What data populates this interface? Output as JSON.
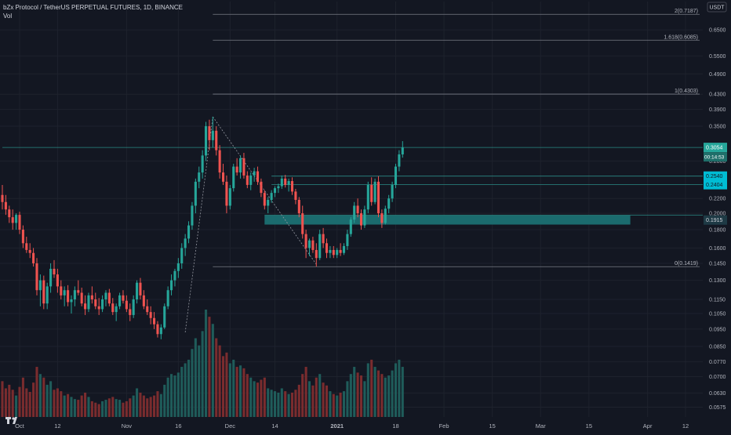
{
  "header": {
    "title": "bZx Protocol / TetherUS PERPETUAL FUTURES, 1D, BINANCE",
    "volume_label": "Vol"
  },
  "axis": {
    "currency": "USDT",
    "price_ticks": [
      "0.6500",
      "0.5500",
      "0.4900",
      "0.4300",
      "0.3900",
      "0.3500",
      "0.2800",
      "0.2200",
      "0.2000",
      "0.1800",
      "0.1600",
      "0.1450",
      "0.1300",
      "0.1150",
      "0.1050",
      "0.0950",
      "0.0850",
      "0.0770",
      "0.0700",
      "0.0630",
      "0.0575"
    ],
    "time_ticks": [
      "Oct",
      "12",
      "Nov",
      "16",
      "Dec",
      "14",
      "2021",
      "18",
      "Feb",
      "15",
      "Mar",
      "15",
      "Apr",
      "12"
    ]
  },
  "price_labels": {
    "last_price": "0.3054",
    "countdown": "00:14:53",
    "upper_line": "0.2540",
    "lower_line": "0.2404",
    "zone": "0.1915"
  },
  "fibonacci": {
    "levels": [
      {
        "label": "2(0.7187)",
        "value": 0.7187
      },
      {
        "label": "1.618(0.6085)",
        "value": 0.6085
      },
      {
        "label": "1(0.4303)",
        "value": 0.4303
      },
      {
        "label": "0(0.1419)",
        "value": 0.1419
      }
    ]
  },
  "colors": {
    "background": "#131722",
    "up": "#26a69a",
    "down": "#ef5350",
    "up_volume": "#1f5c5a",
    "down_volume": "#7a2c2e",
    "grid": "#1e222d",
    "text": "#b2b5be",
    "level_line": "#787b86",
    "teal_line": "#2a8a84",
    "zone": "#1b6b6e",
    "label_bg": "#00bcd4"
  },
  "chart_data": {
    "type": "candlestick",
    "interval": "1D",
    "y_scale": "log",
    "ylim": [
      0.054,
      0.78
    ],
    "x_range": [
      "2020-09-26",
      "2021-04-17"
    ],
    "x_labels": {
      "2020-10-01": "Oct",
      "2020-10-12": "12",
      "2020-11-01": "Nov",
      "2020-11-16": "16",
      "2020-12-01": "Dec",
      "2020-12-14": "14",
      "2021-01-01": "2021",
      "2021-01-18": "18",
      "2021-02-01": "Feb",
      "2021-02-15": "15",
      "2021-03-01": "Mar",
      "2021-03-15": "15",
      "2021-04-01": "Apr",
      "2021-04-12": "12"
    },
    "horizontal_lines": [
      {
        "value": 0.3054,
        "from": "2020-09-26"
      },
      {
        "value": 0.254,
        "from": "2020-12-13"
      },
      {
        "value": 0.2404,
        "from": "2020-12-13"
      }
    ],
    "zone": {
      "from": "2020-12-11",
      "to": "2021-03-27",
      "low": 0.186,
      "high": 0.1975
    },
    "fib_from": "2020-11-26",
    "fib_to": "2021-04-17",
    "trend_lines": [
      {
        "points": [
          [
            "2020-11-18",
            0.093
          ],
          [
            "2020-11-26",
            0.372
          ]
        ]
      },
      {
        "points": [
          [
            "2020-11-26",
            0.372
          ],
          [
            "2020-12-26",
            0.144
          ]
        ]
      }
    ],
    "candles": [
      {
        "d": "2020-09-26",
        "o": 0.225,
        "h": 0.24,
        "l": 0.205,
        "c": 0.215,
        "v": 50
      },
      {
        "d": "2020-09-27",
        "o": 0.215,
        "h": 0.225,
        "l": 0.198,
        "c": 0.205,
        "v": 40
      },
      {
        "d": "2020-09-28",
        "o": 0.205,
        "h": 0.21,
        "l": 0.188,
        "c": 0.195,
        "v": 45
      },
      {
        "d": "2020-09-29",
        "o": 0.195,
        "h": 0.205,
        "l": 0.18,
        "c": 0.188,
        "v": 38
      },
      {
        "d": "2020-09-30",
        "o": 0.188,
        "h": 0.2,
        "l": 0.18,
        "c": 0.198,
        "v": 30
      },
      {
        "d": "2020-10-01",
        "o": 0.198,
        "h": 0.202,
        "l": 0.175,
        "c": 0.18,
        "v": 42
      },
      {
        "d": "2020-10-02",
        "o": 0.18,
        "h": 0.185,
        "l": 0.16,
        "c": 0.165,
        "v": 55
      },
      {
        "d": "2020-10-03",
        "o": 0.165,
        "h": 0.172,
        "l": 0.155,
        "c": 0.158,
        "v": 40
      },
      {
        "d": "2020-10-04",
        "o": 0.158,
        "h": 0.165,
        "l": 0.15,
        "c": 0.155,
        "v": 35
      },
      {
        "d": "2020-10-05",
        "o": 0.155,
        "h": 0.16,
        "l": 0.142,
        "c": 0.145,
        "v": 48
      },
      {
        "d": "2020-10-06",
        "o": 0.145,
        "h": 0.15,
        "l": 0.118,
        "c": 0.122,
        "v": 70
      },
      {
        "d": "2020-10-07",
        "o": 0.122,
        "h": 0.135,
        "l": 0.11,
        "c": 0.13,
        "v": 60
      },
      {
        "d": "2020-10-08",
        "o": 0.13,
        "h": 0.134,
        "l": 0.108,
        "c": 0.112,
        "v": 55
      },
      {
        "d": "2020-10-09",
        "o": 0.112,
        "h": 0.128,
        "l": 0.108,
        "c": 0.125,
        "v": 45
      },
      {
        "d": "2020-10-10",
        "o": 0.125,
        "h": 0.145,
        "l": 0.12,
        "c": 0.14,
        "v": 50
      },
      {
        "d": "2020-10-11",
        "o": 0.14,
        "h": 0.148,
        "l": 0.132,
        "c": 0.135,
        "v": 38
      },
      {
        "d": "2020-10-12",
        "o": 0.135,
        "h": 0.14,
        "l": 0.12,
        "c": 0.125,
        "v": 40
      },
      {
        "d": "2020-10-13",
        "o": 0.125,
        "h": 0.13,
        "l": 0.115,
        "c": 0.118,
        "v": 36
      },
      {
        "d": "2020-10-14",
        "o": 0.118,
        "h": 0.125,
        "l": 0.11,
        "c": 0.122,
        "v": 30
      },
      {
        "d": "2020-10-15",
        "o": 0.122,
        "h": 0.126,
        "l": 0.11,
        "c": 0.113,
        "v": 32
      },
      {
        "d": "2020-10-16",
        "o": 0.113,
        "h": 0.118,
        "l": 0.105,
        "c": 0.115,
        "v": 28
      },
      {
        "d": "2020-10-17",
        "o": 0.115,
        "h": 0.125,
        "l": 0.11,
        "c": 0.122,
        "v": 25
      },
      {
        "d": "2020-10-18",
        "o": 0.122,
        "h": 0.13,
        "l": 0.118,
        "c": 0.12,
        "v": 24
      },
      {
        "d": "2020-10-19",
        "o": 0.12,
        "h": 0.124,
        "l": 0.11,
        "c": 0.112,
        "v": 30
      },
      {
        "d": "2020-10-20",
        "o": 0.112,
        "h": 0.118,
        "l": 0.104,
        "c": 0.108,
        "v": 34
      },
      {
        "d": "2020-10-21",
        "o": 0.108,
        "h": 0.12,
        "l": 0.106,
        "c": 0.118,
        "v": 28
      },
      {
        "d": "2020-10-22",
        "o": 0.118,
        "h": 0.125,
        "l": 0.112,
        "c": 0.115,
        "v": 22
      },
      {
        "d": "2020-10-23",
        "o": 0.115,
        "h": 0.12,
        "l": 0.108,
        "c": 0.11,
        "v": 20
      },
      {
        "d": "2020-10-24",
        "o": 0.11,
        "h": 0.116,
        "l": 0.104,
        "c": 0.108,
        "v": 18
      },
      {
        "d": "2020-10-25",
        "o": 0.108,
        "h": 0.118,
        "l": 0.106,
        "c": 0.115,
        "v": 22
      },
      {
        "d": "2020-10-26",
        "o": 0.115,
        "h": 0.122,
        "l": 0.11,
        "c": 0.12,
        "v": 24
      },
      {
        "d": "2020-10-27",
        "o": 0.12,
        "h": 0.123,
        "l": 0.11,
        "c": 0.112,
        "v": 26
      },
      {
        "d": "2020-10-28",
        "o": 0.112,
        "h": 0.116,
        "l": 0.104,
        "c": 0.106,
        "v": 28
      },
      {
        "d": "2020-10-29",
        "o": 0.106,
        "h": 0.112,
        "l": 0.1,
        "c": 0.11,
        "v": 25
      },
      {
        "d": "2020-10-30",
        "o": 0.11,
        "h": 0.12,
        "l": 0.108,
        "c": 0.118,
        "v": 24
      },
      {
        "d": "2020-10-31",
        "o": 0.118,
        "h": 0.122,
        "l": 0.112,
        "c": 0.114,
        "v": 20
      },
      {
        "d": "2020-11-01",
        "o": 0.114,
        "h": 0.118,
        "l": 0.106,
        "c": 0.108,
        "v": 22
      },
      {
        "d": "2020-11-02",
        "o": 0.108,
        "h": 0.112,
        "l": 0.1,
        "c": 0.104,
        "v": 26
      },
      {
        "d": "2020-11-03",
        "o": 0.104,
        "h": 0.118,
        "l": 0.102,
        "c": 0.115,
        "v": 30
      },
      {
        "d": "2020-11-04",
        "o": 0.115,
        "h": 0.13,
        "l": 0.112,
        "c": 0.128,
        "v": 40
      },
      {
        "d": "2020-11-05",
        "o": 0.128,
        "h": 0.132,
        "l": 0.115,
        "c": 0.118,
        "v": 34
      },
      {
        "d": "2020-11-06",
        "o": 0.118,
        "h": 0.122,
        "l": 0.108,
        "c": 0.11,
        "v": 30
      },
      {
        "d": "2020-11-07",
        "o": 0.11,
        "h": 0.115,
        "l": 0.104,
        "c": 0.106,
        "v": 26
      },
      {
        "d": "2020-11-08",
        "o": 0.106,
        "h": 0.11,
        "l": 0.098,
        "c": 0.102,
        "v": 28
      },
      {
        "d": "2020-11-09",
        "o": 0.102,
        "h": 0.106,
        "l": 0.095,
        "c": 0.098,
        "v": 30
      },
      {
        "d": "2020-11-10",
        "o": 0.098,
        "h": 0.1,
        "l": 0.09,
        "c": 0.092,
        "v": 36
      },
      {
        "d": "2020-11-11",
        "o": 0.092,
        "h": 0.098,
        "l": 0.089,
        "c": 0.096,
        "v": 32
      },
      {
        "d": "2020-11-12",
        "o": 0.096,
        "h": 0.112,
        "l": 0.095,
        "c": 0.11,
        "v": 45
      },
      {
        "d": "2020-11-13",
        "o": 0.11,
        "h": 0.125,
        "l": 0.108,
        "c": 0.122,
        "v": 55
      },
      {
        "d": "2020-11-14",
        "o": 0.122,
        "h": 0.135,
        "l": 0.118,
        "c": 0.13,
        "v": 60
      },
      {
        "d": "2020-11-15",
        "o": 0.13,
        "h": 0.14,
        "l": 0.125,
        "c": 0.138,
        "v": 58
      },
      {
        "d": "2020-11-16",
        "o": 0.138,
        "h": 0.15,
        "l": 0.132,
        "c": 0.145,
        "v": 62
      },
      {
        "d": "2020-11-17",
        "o": 0.145,
        "h": 0.165,
        "l": 0.14,
        "c": 0.16,
        "v": 70
      },
      {
        "d": "2020-11-18",
        "o": 0.16,
        "h": 0.175,
        "l": 0.152,
        "c": 0.17,
        "v": 75
      },
      {
        "d": "2020-11-19",
        "o": 0.17,
        "h": 0.19,
        "l": 0.165,
        "c": 0.185,
        "v": 80
      },
      {
        "d": "2020-11-20",
        "o": 0.185,
        "h": 0.215,
        "l": 0.18,
        "c": 0.21,
        "v": 95
      },
      {
        "d": "2020-11-21",
        "o": 0.21,
        "h": 0.25,
        "l": 0.2,
        "c": 0.245,
        "v": 110
      },
      {
        "d": "2020-11-22",
        "o": 0.245,
        "h": 0.27,
        "l": 0.235,
        "c": 0.26,
        "v": 100
      },
      {
        "d": "2020-11-23",
        "o": 0.26,
        "h": 0.3,
        "l": 0.25,
        "c": 0.29,
        "v": 120
      },
      {
        "d": "2020-11-24",
        "o": 0.29,
        "h": 0.36,
        "l": 0.28,
        "c": 0.35,
        "v": 150
      },
      {
        "d": "2020-11-25",
        "o": 0.35,
        "h": 0.365,
        "l": 0.3,
        "c": 0.32,
        "v": 140
      },
      {
        "d": "2020-11-26",
        "o": 0.32,
        "h": 0.372,
        "l": 0.305,
        "c": 0.34,
        "v": 130
      },
      {
        "d": "2020-11-27",
        "o": 0.34,
        "h": 0.35,
        "l": 0.29,
        "c": 0.3,
        "v": 110
      },
      {
        "d": "2020-11-28",
        "o": 0.3,
        "h": 0.31,
        "l": 0.25,
        "c": 0.26,
        "v": 100
      },
      {
        "d": "2020-11-29",
        "o": 0.26,
        "h": 0.275,
        "l": 0.24,
        "c": 0.245,
        "v": 85
      },
      {
        "d": "2020-11-30",
        "o": 0.245,
        "h": 0.255,
        "l": 0.2,
        "c": 0.21,
        "v": 90
      },
      {
        "d": "2020-12-01",
        "o": 0.21,
        "h": 0.24,
        "l": 0.205,
        "c": 0.235,
        "v": 75
      },
      {
        "d": "2020-12-02",
        "o": 0.235,
        "h": 0.275,
        "l": 0.23,
        "c": 0.27,
        "v": 80
      },
      {
        "d": "2020-12-03",
        "o": 0.27,
        "h": 0.285,
        "l": 0.255,
        "c": 0.26,
        "v": 70
      },
      {
        "d": "2020-12-04",
        "o": 0.26,
        "h": 0.29,
        "l": 0.25,
        "c": 0.285,
        "v": 72
      },
      {
        "d": "2020-12-05",
        "o": 0.285,
        "h": 0.295,
        "l": 0.25,
        "c": 0.255,
        "v": 68
      },
      {
        "d": "2020-12-06",
        "o": 0.255,
        "h": 0.262,
        "l": 0.235,
        "c": 0.24,
        "v": 60
      },
      {
        "d": "2020-12-07",
        "o": 0.24,
        "h": 0.26,
        "l": 0.232,
        "c": 0.255,
        "v": 55
      },
      {
        "d": "2020-12-08",
        "o": 0.255,
        "h": 0.268,
        "l": 0.245,
        "c": 0.262,
        "v": 50
      },
      {
        "d": "2020-12-09",
        "o": 0.262,
        "h": 0.27,
        "l": 0.24,
        "c": 0.245,
        "v": 48
      },
      {
        "d": "2020-12-10",
        "o": 0.245,
        "h": 0.25,
        "l": 0.222,
        "c": 0.228,
        "v": 52
      },
      {
        "d": "2020-12-11",
        "o": 0.228,
        "h": 0.232,
        "l": 0.205,
        "c": 0.21,
        "v": 55
      },
      {
        "d": "2020-12-12",
        "o": 0.21,
        "h": 0.222,
        "l": 0.2,
        "c": 0.218,
        "v": 40
      },
      {
        "d": "2020-12-13",
        "o": 0.218,
        "h": 0.232,
        "l": 0.214,
        "c": 0.228,
        "v": 38
      },
      {
        "d": "2020-12-14",
        "o": 0.228,
        "h": 0.238,
        "l": 0.222,
        "c": 0.235,
        "v": 36
      },
      {
        "d": "2020-12-15",
        "o": 0.235,
        "h": 0.242,
        "l": 0.228,
        "c": 0.238,
        "v": 34
      },
      {
        "d": "2020-12-16",
        "o": 0.238,
        "h": 0.255,
        "l": 0.234,
        "c": 0.25,
        "v": 40
      },
      {
        "d": "2020-12-17",
        "o": 0.25,
        "h": 0.256,
        "l": 0.236,
        "c": 0.24,
        "v": 36
      },
      {
        "d": "2020-12-18",
        "o": 0.24,
        "h": 0.25,
        "l": 0.23,
        "c": 0.246,
        "v": 32
      },
      {
        "d": "2020-12-19",
        "o": 0.246,
        "h": 0.252,
        "l": 0.225,
        "c": 0.23,
        "v": 34
      },
      {
        "d": "2020-12-20",
        "o": 0.23,
        "h": 0.234,
        "l": 0.212,
        "c": 0.218,
        "v": 38
      },
      {
        "d": "2020-12-21",
        "o": 0.218,
        "h": 0.222,
        "l": 0.195,
        "c": 0.2,
        "v": 45
      },
      {
        "d": "2020-12-22",
        "o": 0.2,
        "h": 0.21,
        "l": 0.17,
        "c": 0.175,
        "v": 60
      },
      {
        "d": "2020-12-23",
        "o": 0.175,
        "h": 0.18,
        "l": 0.15,
        "c": 0.16,
        "v": 70
      },
      {
        "d": "2020-12-24",
        "o": 0.16,
        "h": 0.17,
        "l": 0.152,
        "c": 0.168,
        "v": 50
      },
      {
        "d": "2020-12-25",
        "o": 0.168,
        "h": 0.172,
        "l": 0.155,
        "c": 0.158,
        "v": 44
      },
      {
        "d": "2020-12-26",
        "o": 0.158,
        "h": 0.165,
        "l": 0.142,
        "c": 0.15,
        "v": 55
      },
      {
        "d": "2020-12-27",
        "o": 0.15,
        "h": 0.18,
        "l": 0.148,
        "c": 0.175,
        "v": 60
      },
      {
        "d": "2020-12-28",
        "o": 0.175,
        "h": 0.182,
        "l": 0.16,
        "c": 0.165,
        "v": 48
      },
      {
        "d": "2020-12-29",
        "o": 0.165,
        "h": 0.17,
        "l": 0.15,
        "c": 0.155,
        "v": 44
      },
      {
        "d": "2020-12-30",
        "o": 0.155,
        "h": 0.162,
        "l": 0.15,
        "c": 0.158,
        "v": 36
      },
      {
        "d": "2020-12-31",
        "o": 0.158,
        "h": 0.162,
        "l": 0.15,
        "c": 0.153,
        "v": 32
      },
      {
        "d": "2021-01-01",
        "o": 0.153,
        "h": 0.16,
        "l": 0.15,
        "c": 0.158,
        "v": 30
      },
      {
        "d": "2021-01-02",
        "o": 0.158,
        "h": 0.165,
        "l": 0.152,
        "c": 0.155,
        "v": 34
      },
      {
        "d": "2021-01-03",
        "o": 0.155,
        "h": 0.165,
        "l": 0.153,
        "c": 0.162,
        "v": 36
      },
      {
        "d": "2021-01-04",
        "o": 0.162,
        "h": 0.18,
        "l": 0.158,
        "c": 0.175,
        "v": 50
      },
      {
        "d": "2021-01-05",
        "o": 0.175,
        "h": 0.195,
        "l": 0.172,
        "c": 0.192,
        "v": 60
      },
      {
        "d": "2021-01-06",
        "o": 0.192,
        "h": 0.215,
        "l": 0.188,
        "c": 0.21,
        "v": 70
      },
      {
        "d": "2021-01-07",
        "o": 0.21,
        "h": 0.22,
        "l": 0.195,
        "c": 0.2,
        "v": 62
      },
      {
        "d": "2021-01-08",
        "o": 0.2,
        "h": 0.205,
        "l": 0.18,
        "c": 0.185,
        "v": 58
      },
      {
        "d": "2021-01-09",
        "o": 0.185,
        "h": 0.21,
        "l": 0.182,
        "c": 0.205,
        "v": 50
      },
      {
        "d": "2021-01-10",
        "o": 0.205,
        "h": 0.245,
        "l": 0.2,
        "c": 0.24,
        "v": 75
      },
      {
        "d": "2021-01-11",
        "o": 0.24,
        "h": 0.252,
        "l": 0.21,
        "c": 0.215,
        "v": 80
      },
      {
        "d": "2021-01-12",
        "o": 0.215,
        "h": 0.25,
        "l": 0.212,
        "c": 0.245,
        "v": 70
      },
      {
        "d": "2021-01-13",
        "o": 0.245,
        "h": 0.254,
        "l": 0.195,
        "c": 0.2,
        "v": 65
      },
      {
        "d": "2021-01-14",
        "o": 0.2,
        "h": 0.205,
        "l": 0.182,
        "c": 0.188,
        "v": 60
      },
      {
        "d": "2021-01-15",
        "o": 0.188,
        "h": 0.21,
        "l": 0.186,
        "c": 0.206,
        "v": 55
      },
      {
        "d": "2021-01-16",
        "o": 0.206,
        "h": 0.225,
        "l": 0.2,
        "c": 0.22,
        "v": 58
      },
      {
        "d": "2021-01-17",
        "o": 0.22,
        "h": 0.245,
        "l": 0.215,
        "c": 0.24,
        "v": 65
      },
      {
        "d": "2021-01-18",
        "o": 0.24,
        "h": 0.275,
        "l": 0.235,
        "c": 0.27,
        "v": 75
      },
      {
        "d": "2021-01-19",
        "o": 0.27,
        "h": 0.3,
        "l": 0.262,
        "c": 0.292,
        "v": 80
      },
      {
        "d": "2021-01-20",
        "o": 0.292,
        "h": 0.318,
        "l": 0.286,
        "c": 0.305,
        "v": 70
      }
    ]
  }
}
